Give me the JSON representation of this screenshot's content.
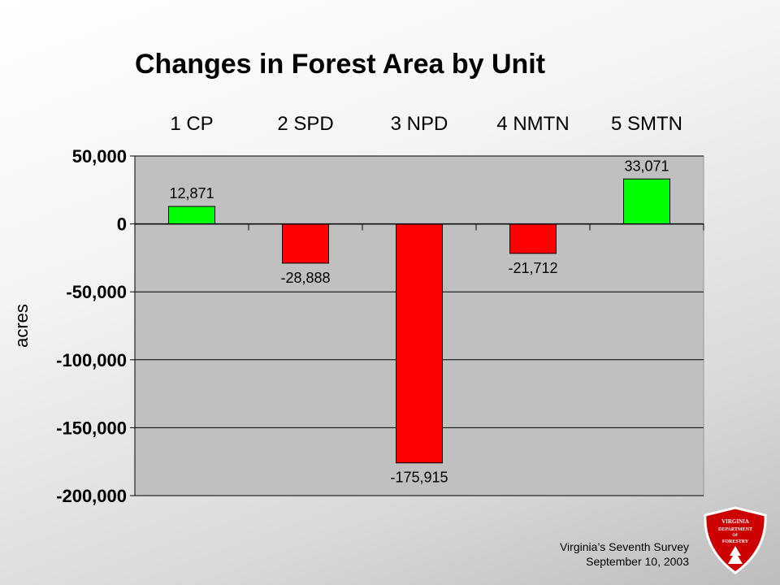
{
  "chart_data": {
    "type": "bar",
    "title": "Changes in Forest Area by Unit",
    "ylabel": "acres",
    "categories": [
      "1 CP",
      "2 SPD",
      "3 NPD",
      "4 NMTN",
      "5 SMTN"
    ],
    "values": [
      12871,
      -28888,
      -175915,
      -21712,
      33071
    ],
    "value_labels": [
      "12,871",
      "-28,888",
      "-175,915",
      "-21,712",
      "33,071"
    ],
    "yticks": [
      50000,
      0,
      -50000,
      -100000,
      -150000,
      -200000
    ],
    "ytick_labels": [
      "50,000",
      "0",
      "-50,000",
      "-100,000",
      "-150,000",
      "-200,000"
    ],
    "ylim": [
      -200000,
      50000
    ],
    "grid": true,
    "positive_color": "#00ff00",
    "negative_color": "#ff0000",
    "plot_background": "#c0c0c0",
    "category_labels_position": "top"
  },
  "footer": {
    "line1": "Virginia’s Seventh Survey",
    "line2": "September 10, 2003"
  },
  "logo": {
    "icon": "virginia-department-of-forestry-seal",
    "lines": [
      "VIRGINIA",
      "DEPARTMENT",
      "OF",
      "FORESTRY"
    ],
    "color": "#cc0000"
  }
}
